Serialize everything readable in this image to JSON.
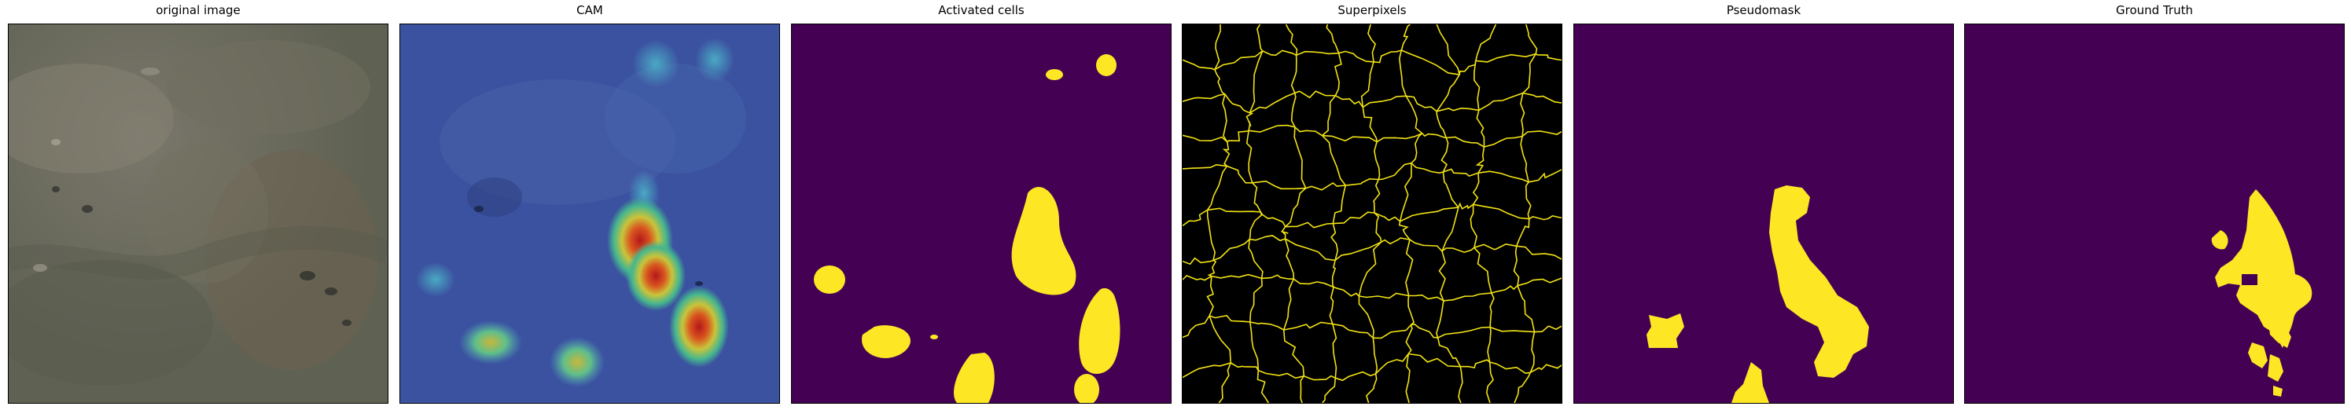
{
  "panels": [
    {
      "title": "original image",
      "image": "aerial-tundra-terrain"
    },
    {
      "title": "CAM",
      "image": "class-activation-heatmap-overlay"
    },
    {
      "title": "Activated cells",
      "image": "binary-activation-mask"
    },
    {
      "title": "Superpixels",
      "image": "superpixel-boundary-map"
    },
    {
      "title": "Pseudomask",
      "image": "pseudo-label-mask"
    },
    {
      "title": "Ground Truth",
      "image": "ground-truth-mask"
    }
  ],
  "colors": {
    "mask_background": "#440154",
    "mask_foreground": "#fde725",
    "superpixel_boundary": "#f2e313",
    "terrain_base": "#67665a",
    "cam_low": "#3a4f9e",
    "cam_high": "#c4221b"
  }
}
